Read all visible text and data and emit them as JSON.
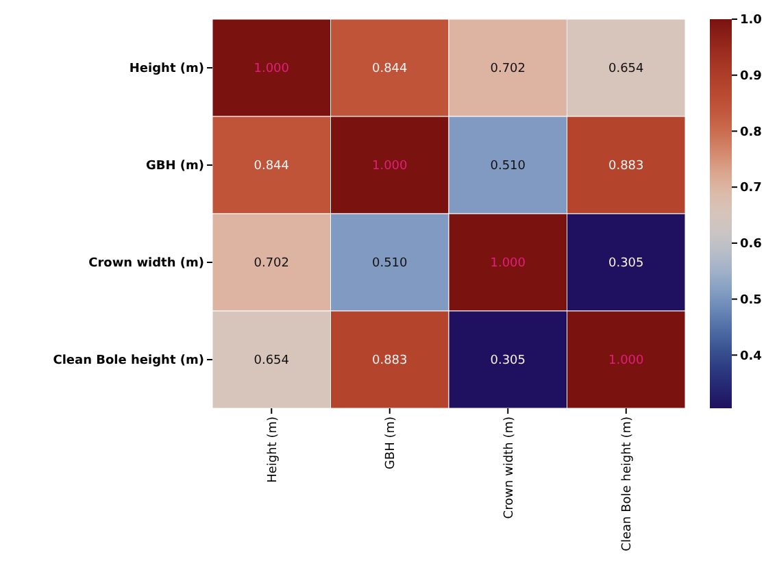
{
  "chart_data": {
    "type": "heatmap",
    "categories": [
      "Height (m)",
      "GBH (m)",
      "Crown width (m)",
      "Clean Bole height (m)"
    ],
    "y_categories": [
      "Height (m)",
      "GBH (m)",
      "Crown width (m)",
      "Clean Bole height (m)"
    ],
    "cells": [
      [
        1.0,
        0.844,
        0.702,
        0.654
      ],
      [
        0.844,
        1.0,
        0.51,
        0.883
      ],
      [
        0.702,
        0.51,
        1.0,
        0.305
      ],
      [
        0.654,
        0.883,
        0.305,
        1.0
      ]
    ],
    "cell_labels": [
      [
        "1.000",
        "0.844",
        "0.702",
        "0.654"
      ],
      [
        "0.844",
        "1.000",
        "0.510",
        "0.883"
      ],
      [
        "0.702",
        "0.510",
        "1.000",
        "0.305"
      ],
      [
        "0.654",
        "0.883",
        "0.305",
        "1.000"
      ]
    ],
    "clim": [
      0.305,
      1.0
    ],
    "cticks": [
      0.4,
      0.5,
      0.6,
      0.7,
      0.8,
      0.9,
      {
        "value": 1.0,
        "label": "1.0"
      }
    ]
  }
}
